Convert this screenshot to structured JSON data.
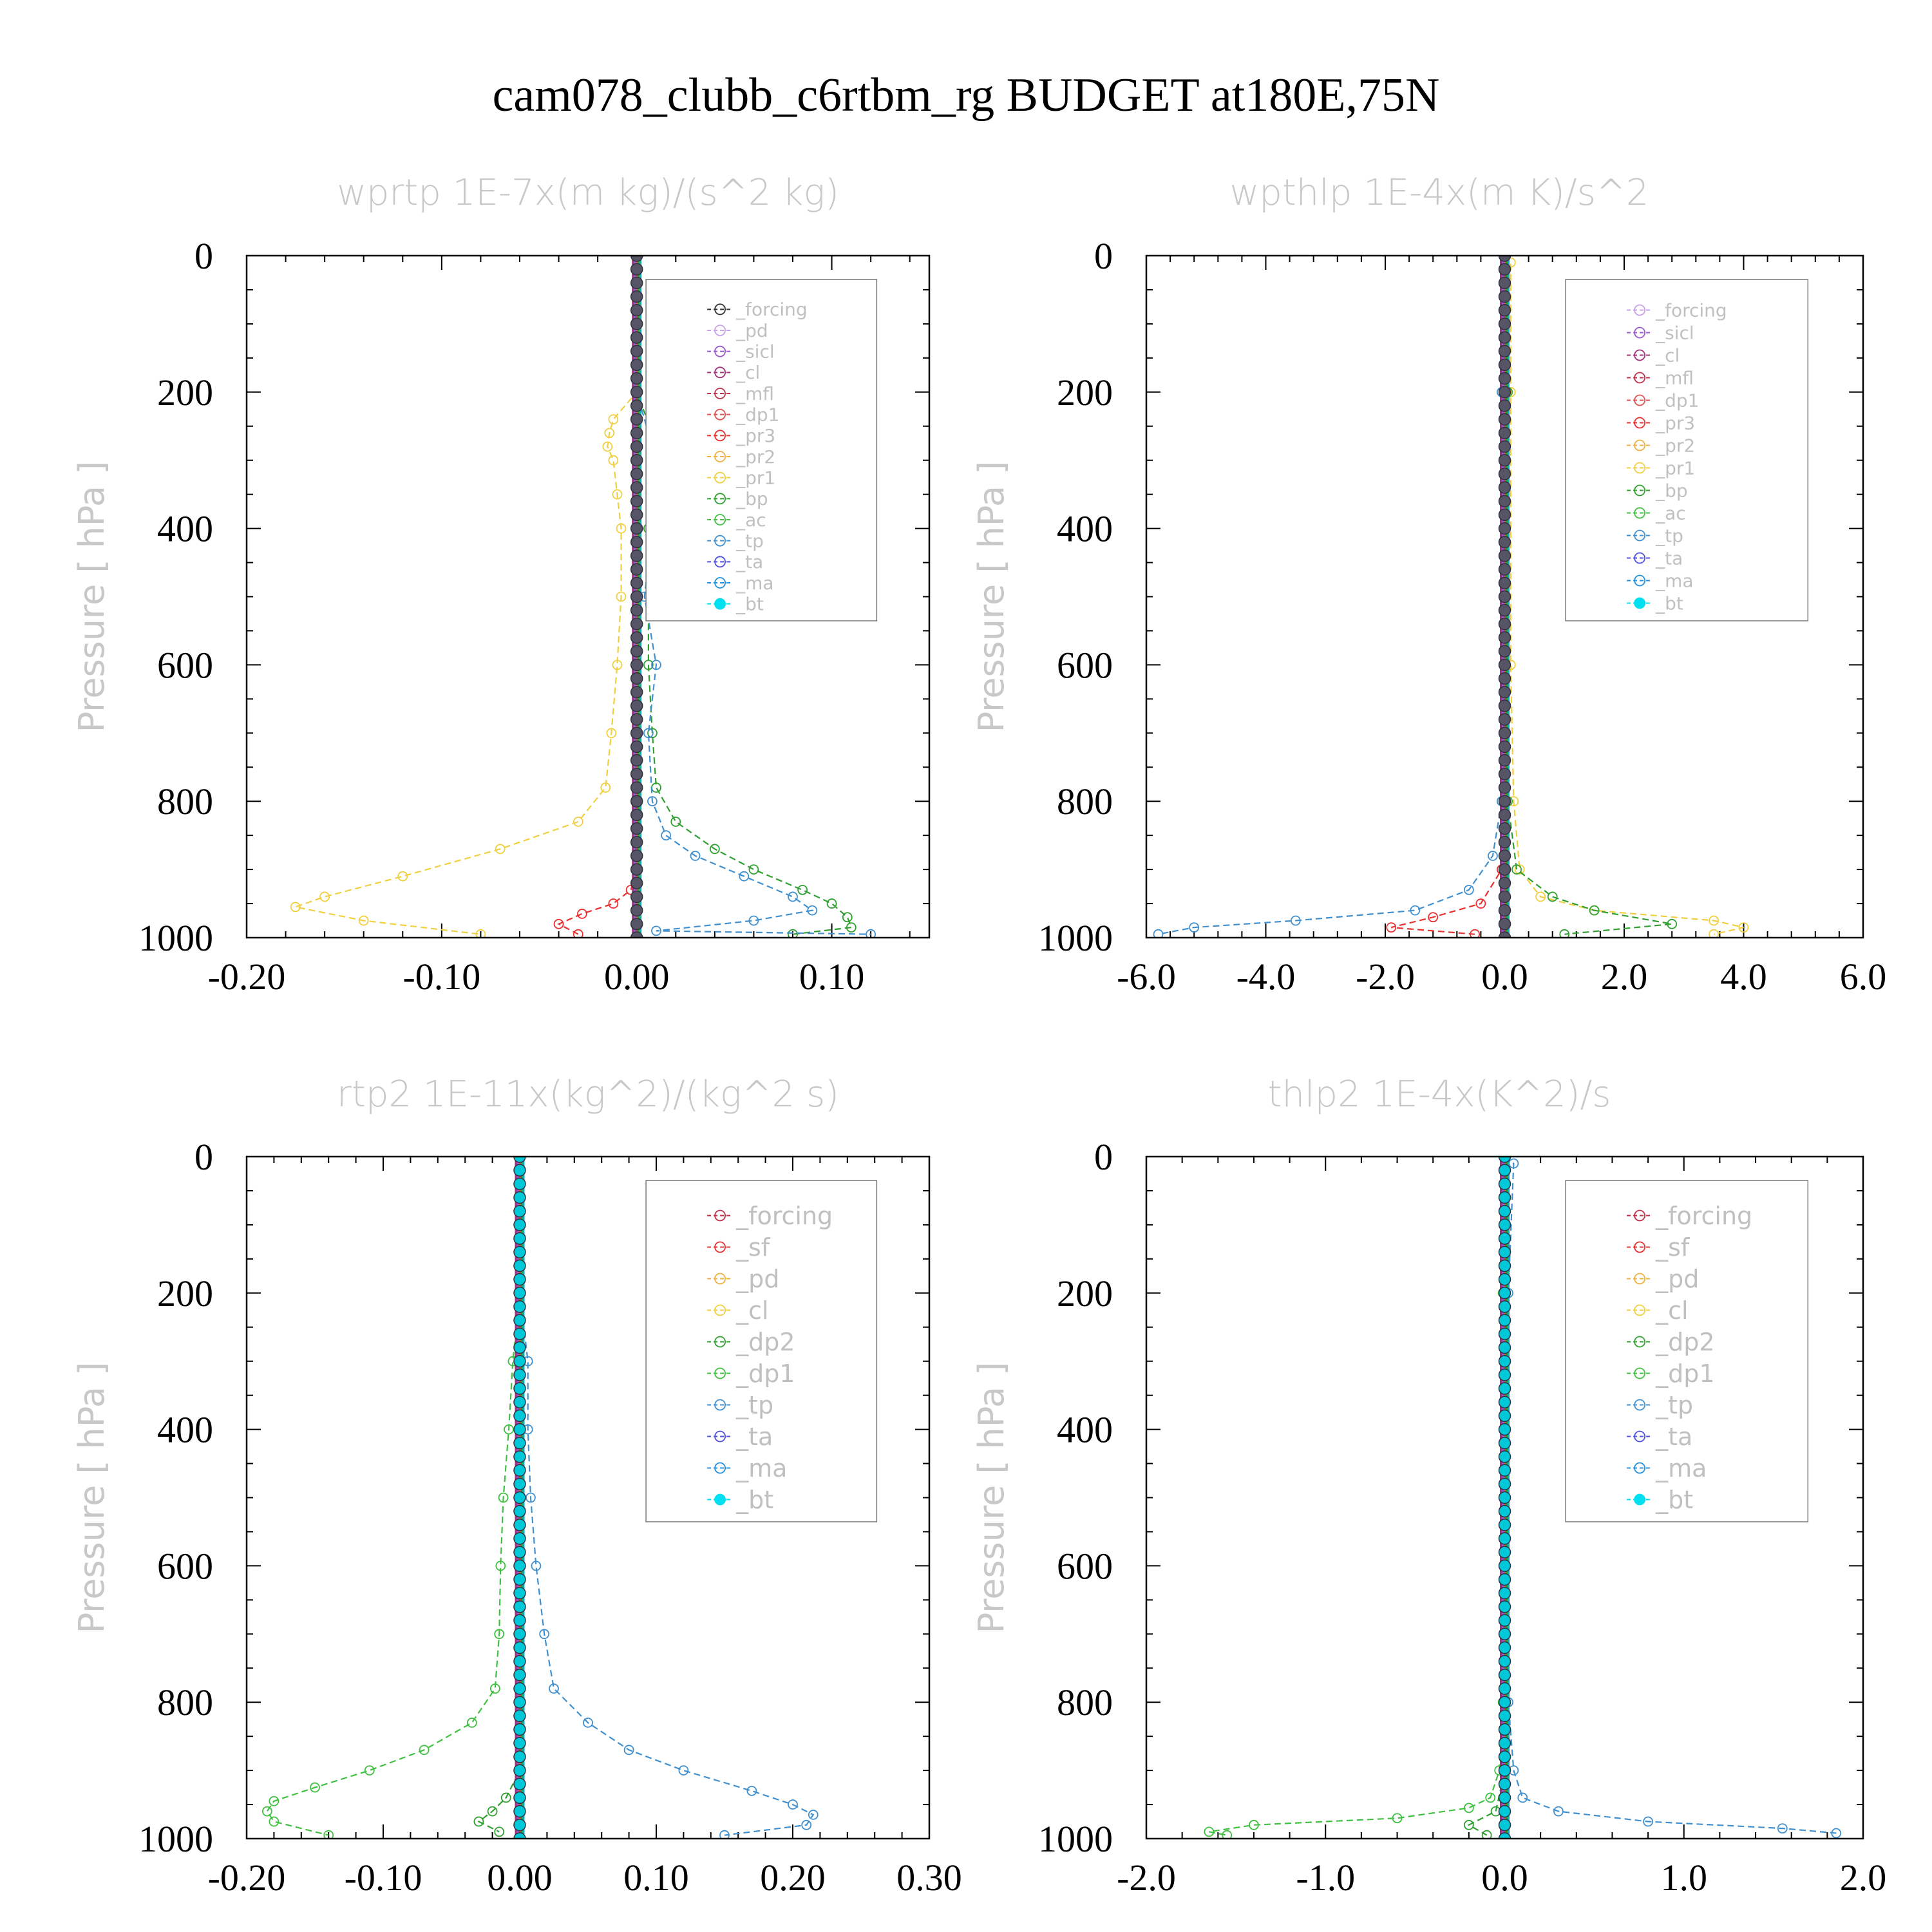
{
  "figure_title": "cam078_clubb_c6rtbm_rg  BUDGET at180E,75N",
  "colors": {
    "forcing": "#333333",
    "pd": "#c8a2e8",
    "sicl": "#9b59d0",
    "cl": "#a0307a",
    "mfl": "#c0304a",
    "dp1": "#e05050",
    "pr3": "#e83030",
    "pr2": "#f0b040",
    "pr1": "#f0d040",
    "bp": "#30a030",
    "ac": "#40c040",
    "tp": "#4090d0",
    "ta": "#5050e0",
    "ma": "#2090e0",
    "bt": "#00e0f0"
  },
  "chart_data": [
    {
      "type": "line",
      "title": "wprtp  1E-7x(m kg)/(s^2 kg)",
      "ylabel": "Pressure [ hPa ]",
      "xlim": [
        -0.2,
        0.15
      ],
      "ylim": [
        0,
        1000
      ],
      "xticks": [
        "-0.20",
        "-0.10",
        "0.00",
        "0.10"
      ],
      "xtick_values": [
        -0.2,
        -0.1,
        0.0,
        0.1
      ],
      "yticks": [
        "0",
        "200",
        "400",
        "600",
        "800",
        "1000"
      ],
      "ytick_values": [
        0,
        200,
        400,
        600,
        800,
        1000
      ],
      "legend": [
        "_forcing",
        "_pd",
        "_sicl",
        "_cl",
        "_mfl",
        "_dp1",
        "_pr3",
        "_pr2",
        "_pr1",
        "_bp",
        "_ac",
        "_tp",
        "_ta",
        "_ma",
        "_bt"
      ],
      "legend_keys": [
        "forcing",
        "pd",
        "sicl",
        "cl",
        "mfl",
        "dp1",
        "pr3",
        "pr2",
        "pr1",
        "bp",
        "ac",
        "tp",
        "ta",
        "ma",
        "bt"
      ],
      "legend_position": "top-right",
      "series": [
        {
          "key": "pr1",
          "p": [
            0,
            200,
            240,
            260,
            280,
            300,
            350,
            400,
            500,
            600,
            700,
            780,
            830,
            870,
            910,
            940,
            955,
            975,
            995
          ],
          "x": [
            0,
            0,
            -0.012,
            -0.014,
            -0.015,
            -0.012,
            -0.01,
            -0.008,
            -0.008,
            -0.01,
            -0.013,
            -0.016,
            -0.03,
            -0.07,
            -0.12,
            -0.16,
            -0.175,
            -0.14,
            -0.08
          ]
        },
        {
          "key": "pr3",
          "p": [
            0,
            900,
            930,
            950,
            965,
            980,
            995
          ],
          "x": [
            0,
            0,
            -0.003,
            -0.012,
            -0.028,
            -0.04,
            -0.03
          ]
        },
        {
          "key": "bp",
          "p": [
            0,
            200,
            260,
            300,
            400,
            600,
            700,
            780,
            830,
            870,
            900,
            930,
            950,
            970,
            985,
            995
          ],
          "x": [
            0,
            0,
            0.008,
            0.008,
            0.006,
            0.006,
            0.008,
            0.01,
            0.02,
            0.04,
            0.06,
            0.085,
            0.1,
            0.108,
            0.11,
            0.08
          ]
        },
        {
          "key": "tp",
          "p": [
            0,
            200,
            300,
            400,
            500,
            600,
            700,
            800,
            850,
            880,
            910,
            940,
            960,
            975,
            990,
            995
          ],
          "x": [
            0,
            0,
            0.01,
            0.008,
            0.004,
            0.01,
            0.006,
            0.008,
            0.015,
            0.03,
            0.055,
            0.08,
            0.09,
            0.06,
            0.01,
            0.12
          ]
        }
      ],
      "spine": {
        "top": 0,
        "bottom": 995
      }
    },
    {
      "type": "line",
      "title": "wpthlp   1E-4x(m K)/s^2",
      "ylabel": "Pressure [ hPa ]",
      "xlim": [
        -6.0,
        6.0
      ],
      "ylim": [
        0,
        1000
      ],
      "xticks": [
        "-6.0",
        "-4.0",
        "-2.0",
        "0.0",
        "2.0",
        "4.0",
        "6.0"
      ],
      "xtick_values": [
        -6.0,
        -4.0,
        -2.0,
        0.0,
        2.0,
        4.0,
        6.0
      ],
      "yticks": [
        "0",
        "200",
        "400",
        "600",
        "800",
        "1000"
      ],
      "ytick_values": [
        0,
        200,
        400,
        600,
        800,
        1000
      ],
      "legend": [
        "_forcing",
        "_sicl",
        "_cl",
        "_mfl",
        "_dp1",
        "_pr3",
        "_pr2",
        "_pr1",
        "_bp",
        "_ac",
        "_tp",
        "_ta",
        "_ma",
        "_bt"
      ],
      "legend_keys": [
        "pd",
        "sicl",
        "cl",
        "mfl",
        "dp1",
        "pr3",
        "pr2",
        "pr1",
        "bp",
        "ac",
        "tp",
        "ta",
        "ma",
        "bt"
      ],
      "legend_position": "top-right",
      "series": [
        {
          "key": "pr1",
          "p": [
            0,
            10,
            200,
            600,
            800,
            900,
            940,
            960,
            975,
            985,
            995
          ],
          "x": [
            0,
            0.1,
            0.1,
            0.1,
            0.15,
            0.25,
            0.6,
            1.5,
            3.5,
            4.0,
            3.5
          ]
        },
        {
          "key": "bp",
          "p": [
            0,
            200,
            800,
            900,
            940,
            960,
            980,
            995
          ],
          "x": [
            0,
            0.05,
            0.05,
            0.2,
            0.8,
            1.5,
            2.8,
            1.0
          ]
        },
        {
          "key": "tp",
          "p": [
            0,
            200,
            800,
            880,
            930,
            960,
            975,
            985,
            995
          ],
          "x": [
            0,
            -0.05,
            -0.05,
            -0.2,
            -0.6,
            -1.5,
            -3.5,
            -5.2,
            -5.8
          ]
        },
        {
          "key": "pr3",
          "p": [
            0,
            900,
            950,
            970,
            985,
            995
          ],
          "x": [
            0,
            -0.05,
            -0.4,
            -1.2,
            -1.9,
            -0.5
          ]
        }
      ],
      "spine": {
        "top": 0,
        "bottom": 995
      }
    },
    {
      "type": "line",
      "title": "rtp2   1E-11x(kg^2)/(kg^2 s)",
      "ylabel": "Pressure [ hPa ]",
      "xlim": [
        -0.2,
        0.3
      ],
      "ylim": [
        0,
        1000
      ],
      "xticks": [
        "-0.20",
        "-0.10",
        "0.00",
        "0.10",
        "0.20",
        "0.30"
      ],
      "xtick_values": [
        -0.2,
        -0.1,
        0.0,
        0.1,
        0.2,
        0.3
      ],
      "yticks": [
        "0",
        "200",
        "400",
        "600",
        "800",
        "1000"
      ],
      "ytick_values": [
        0,
        200,
        400,
        600,
        800,
        1000
      ],
      "legend": [
        "_forcing",
        "_sf",
        "_pd",
        "_cl",
        "_dp2",
        "_dp1",
        "_tp",
        "_ta",
        "_ma",
        "_bt"
      ],
      "legend_keys": [
        "mfl",
        "pr3",
        "pr2",
        "pr1",
        "bp",
        "ac",
        "tp",
        "ta",
        "ma",
        "bt"
      ],
      "legend_position": "top-right",
      "series": [
        {
          "key": "ac",
          "p": [
            0,
            200,
            300,
            400,
            500,
            600,
            700,
            780,
            830,
            870,
            900,
            925,
            945,
            960,
            975,
            995
          ],
          "x": [
            0,
            0,
            -0.005,
            -0.008,
            -0.012,
            -0.014,
            -0.015,
            -0.018,
            -0.035,
            -0.07,
            -0.11,
            -0.15,
            -0.18,
            -0.185,
            -0.18,
            -0.14
          ]
        },
        {
          "key": "tp",
          "p": [
            0,
            200,
            300,
            400,
            500,
            600,
            700,
            780,
            830,
            870,
            900,
            930,
            950,
            965,
            980,
            995
          ],
          "x": [
            0,
            0,
            0.006,
            0.006,
            0.008,
            0.012,
            0.018,
            0.025,
            0.05,
            0.08,
            0.12,
            0.17,
            0.2,
            0.215,
            0.21,
            0.15
          ]
        },
        {
          "key": "bp",
          "p": [
            0,
            900,
            940,
            960,
            975,
            990
          ],
          "x": [
            0,
            0,
            -0.01,
            -0.02,
            -0.03,
            -0.015
          ]
        }
      ],
      "spine": {
        "top": 0,
        "bottom": 995
      }
    },
    {
      "type": "line",
      "title": "thlp2   1E-4x(K^2)/s",
      "ylabel": "Pressure [ hPa ]",
      "xlim": [
        -2.0,
        2.0
      ],
      "ylim": [
        0,
        1000
      ],
      "xticks": [
        "-2.0",
        "-1.0",
        "0.0",
        "1.0",
        "2.0"
      ],
      "xtick_values": [
        -2.0,
        -1.0,
        0.0,
        1.0,
        2.0
      ],
      "yticks": [
        "0",
        "200",
        "400",
        "600",
        "800",
        "1000"
      ],
      "ytick_values": [
        0,
        200,
        400,
        600,
        800,
        1000
      ],
      "legend": [
        "_forcing",
        "_sf",
        "_pd",
        "_cl",
        "_dp2",
        "_dp1",
        "_tp",
        "_ta",
        "_ma",
        "_bt"
      ],
      "legend_keys": [
        "mfl",
        "pr3",
        "pr2",
        "pr1",
        "bp",
        "ac",
        "tp",
        "ta",
        "ma",
        "bt"
      ],
      "legend_position": "top-right",
      "series": [
        {
          "key": "ac",
          "p": [
            0,
            200,
            800,
            900,
            940,
            955,
            970,
            980,
            990,
            995
          ],
          "x": [
            0,
            -0.01,
            -0.01,
            -0.03,
            -0.08,
            -0.2,
            -0.6,
            -1.4,
            -1.65,
            -1.55
          ]
        },
        {
          "key": "tp",
          "p": [
            0,
            10,
            200,
            800,
            900,
            940,
            960,
            975,
            985,
            992
          ],
          "x": [
            0,
            0.05,
            0.02,
            0.02,
            0.05,
            0.1,
            0.3,
            0.8,
            1.55,
            1.85
          ]
        },
        {
          "key": "bp",
          "p": [
            0,
            900,
            960,
            980,
            995
          ],
          "x": [
            0,
            0,
            -0.05,
            -0.2,
            -0.1
          ]
        }
      ],
      "spine": {
        "top": 0,
        "bottom": 995
      }
    }
  ]
}
